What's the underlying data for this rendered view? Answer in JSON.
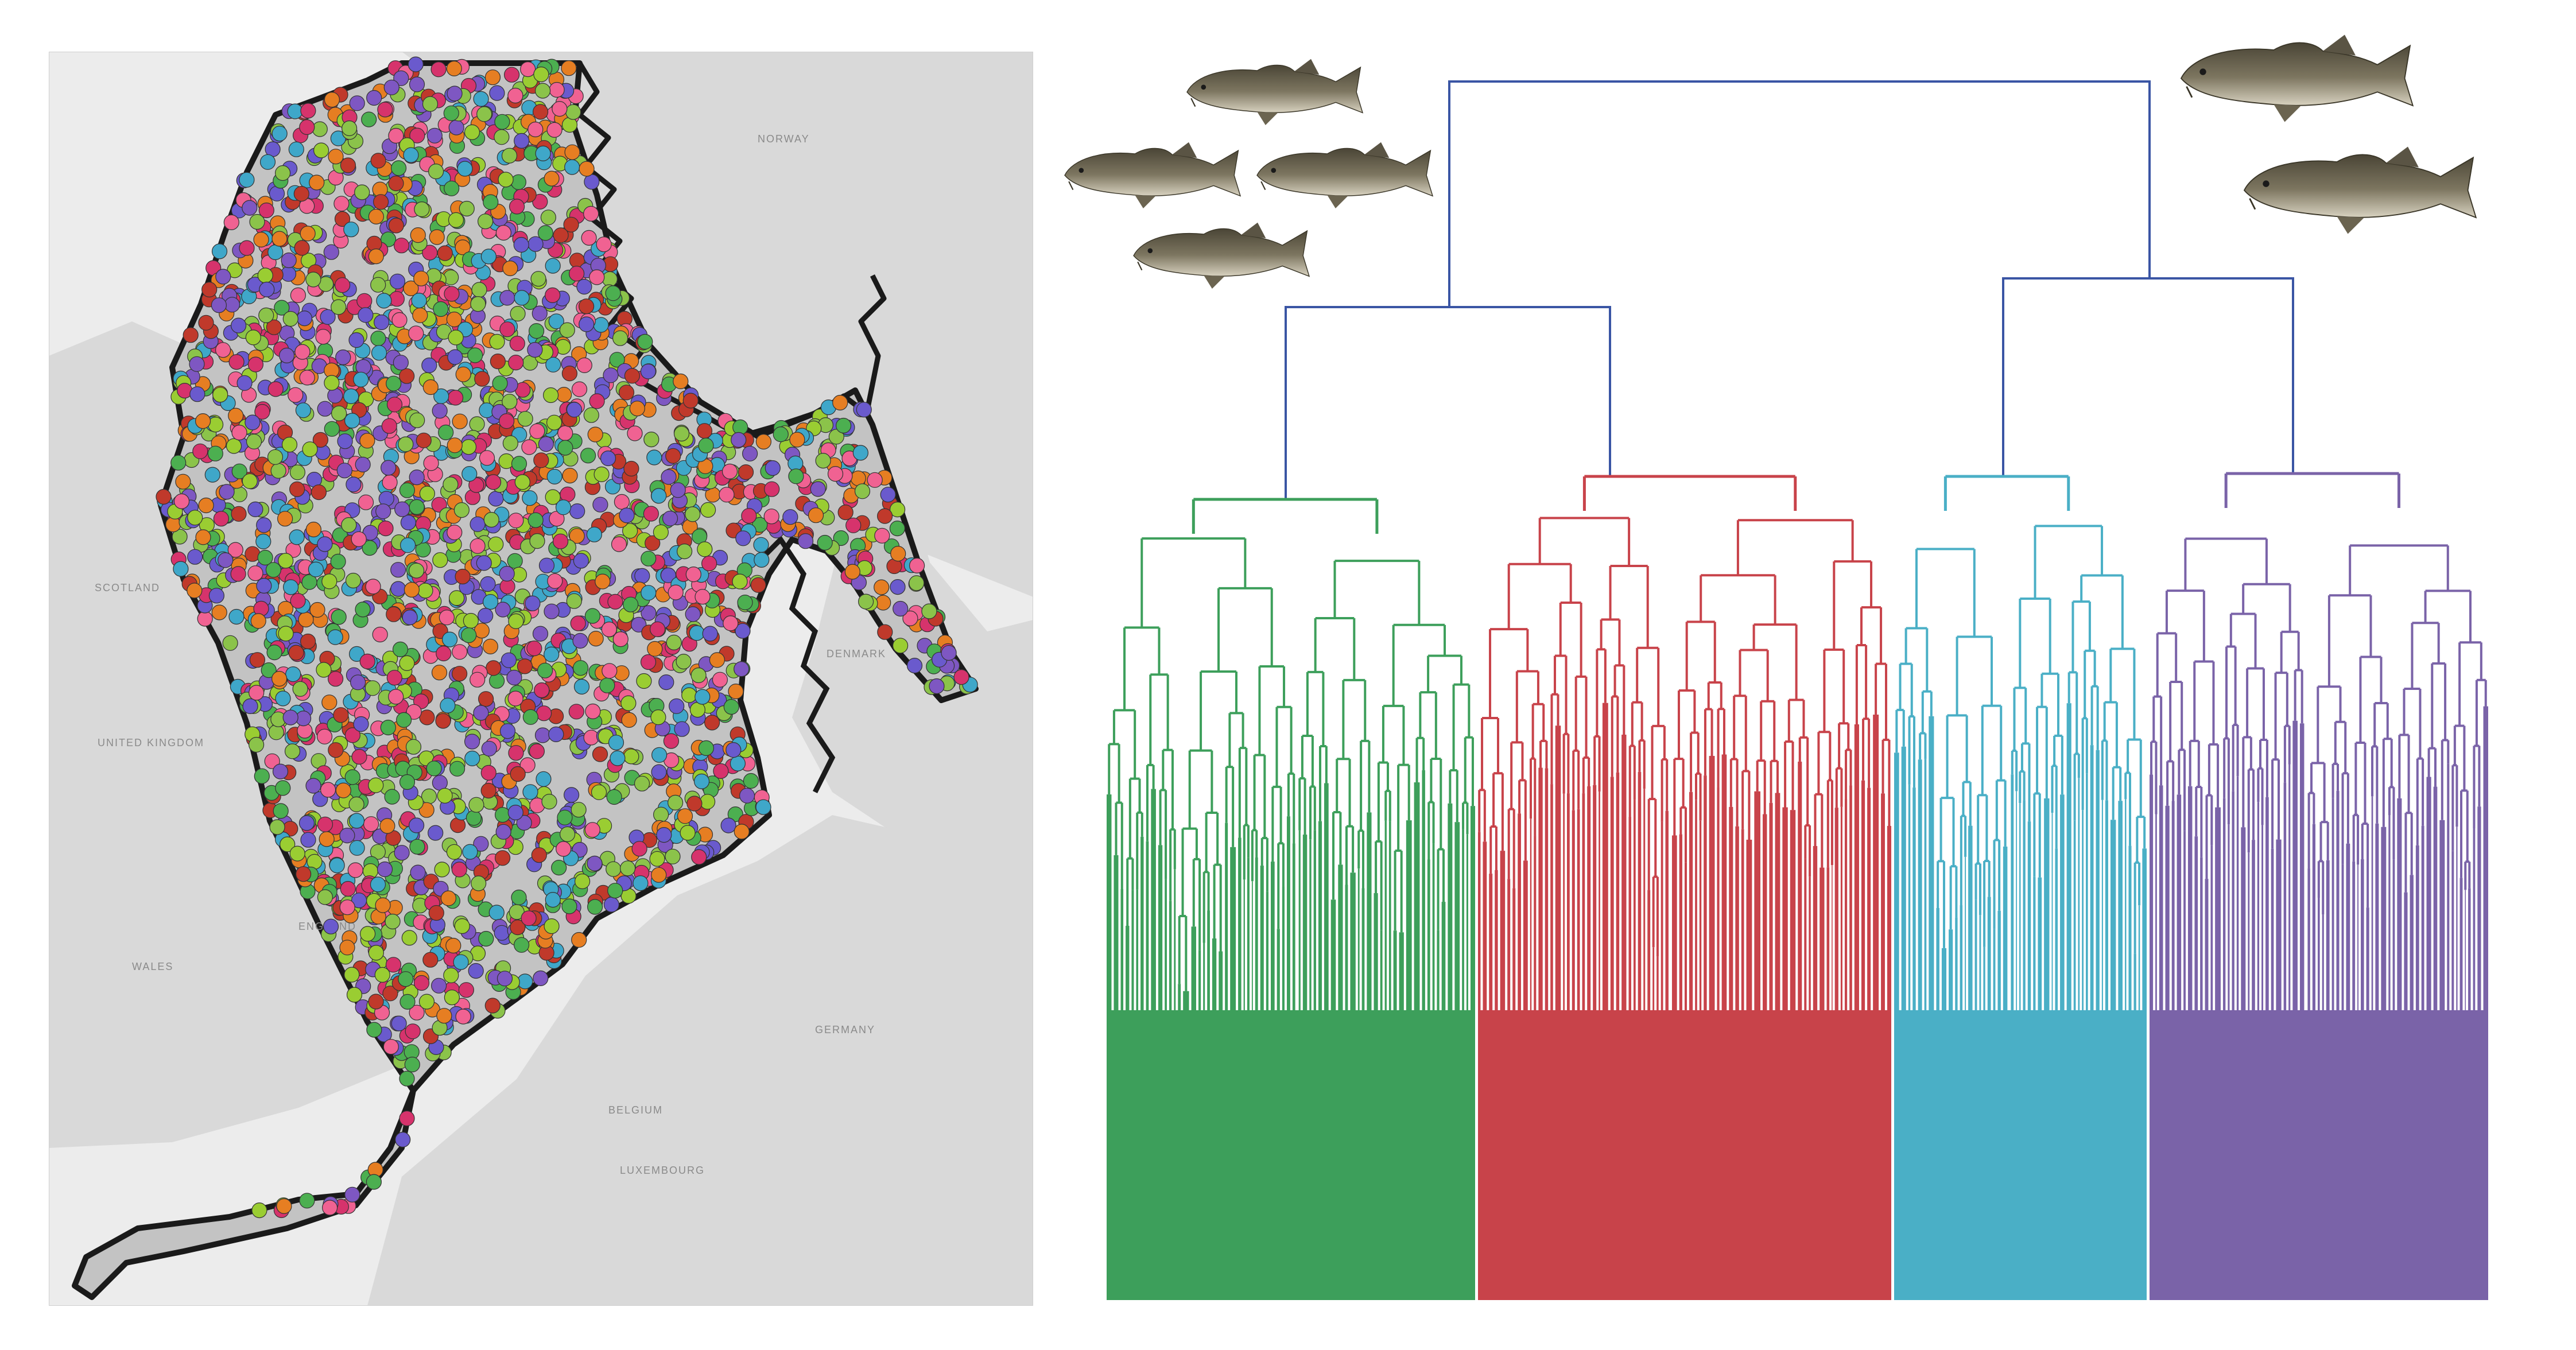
{
  "map": {
    "country_labels": {
      "norway": "NORWAY",
      "denmark": "DENMARK",
      "scotland": "SCOTLAND",
      "united_kingdom": "UNITED KINGDOM",
      "england": "ENGLAND",
      "wales": "WALES",
      "germany": "GERMANY",
      "belgium": "BELGIUM",
      "luxembourg": "LUXEMBOURG"
    },
    "colors": {
      "land": "#d9d9d9",
      "sea_outside": "#ececec",
      "region_fill": "#c3c3c3",
      "region_outline": "#1a1a1a"
    },
    "point_colors": [
      "#8bc34a",
      "#d6336c",
      "#6a5acd",
      "#3fa7c9",
      "#e67e22",
      "#9acd32",
      "#c0392b",
      "#7e57c2",
      "#4caf50",
      "#f06292"
    ]
  },
  "dendrogram": {
    "colors": {
      "root": "#3a55a4",
      "cluster_1": "#3d9f5b",
      "cluster_2": "#c8434a",
      "cluster_3": "#4aafc6",
      "cluster_4": "#7a63a8"
    },
    "clusters": [
      {
        "id": "cluster_1",
        "color_key": "cluster_1"
      },
      {
        "id": "cluster_2",
        "color_key": "cluster_2"
      },
      {
        "id": "cluster_3",
        "color_key": "cluster_3"
      },
      {
        "id": "cluster_4",
        "color_key": "cluster_4"
      }
    ],
    "fish_icon_count_left": 4,
    "fish_icon_count_right": 2
  }
}
